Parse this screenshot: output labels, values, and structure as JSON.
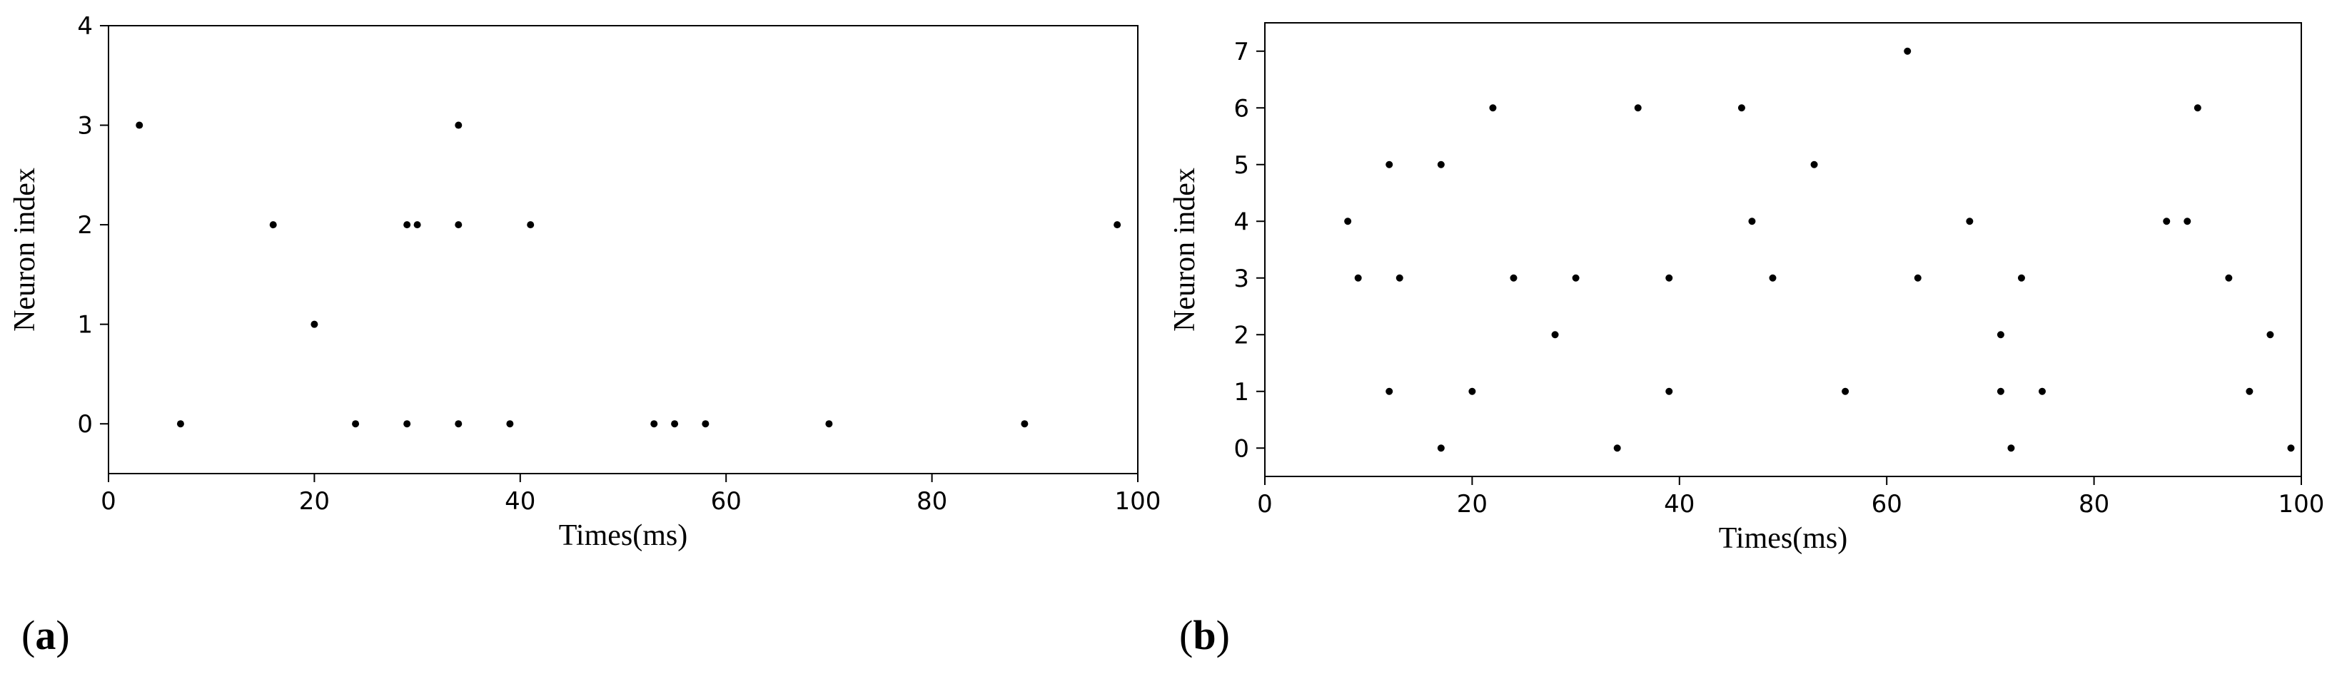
{
  "chart_data": [
    {
      "type": "scatter",
      "panel_label_open": "(",
      "panel_label_letter": "a",
      "panel_label_close": ")",
      "xlabel": "Times(ms)",
      "ylabel": "Neuron index",
      "xlim": [
        0,
        100
      ],
      "ylim": [
        -0.5,
        4
      ],
      "xticks": [
        0,
        20,
        40,
        60,
        80,
        100
      ],
      "yticks": [
        0,
        1,
        2,
        3,
        4
      ],
      "grid": false,
      "marker_color": "#000000",
      "series": [
        {
          "points": [
            [
              3,
              3
            ],
            [
              7,
              0
            ],
            [
              16,
              2
            ],
            [
              20,
              1
            ],
            [
              24,
              0
            ],
            [
              29,
              2
            ],
            [
              29,
              0
            ],
            [
              30,
              2
            ],
            [
              34,
              3
            ],
            [
              34,
              2
            ],
            [
              34,
              0
            ],
            [
              39,
              0
            ],
            [
              41,
              2
            ],
            [
              53,
              0
            ],
            [
              55,
              0
            ],
            [
              58,
              0
            ],
            [
              70,
              0
            ],
            [
              89,
              0
            ],
            [
              98,
              2
            ]
          ]
        }
      ]
    },
    {
      "type": "scatter",
      "panel_label_open": "(",
      "panel_label_letter": "b",
      "panel_label_close": ")",
      "xlabel": "Times(ms)",
      "ylabel": "Neuron index",
      "xlim": [
        0,
        100
      ],
      "ylim": [
        -0.5,
        7.5
      ],
      "xticks": [
        0,
        20,
        40,
        60,
        80,
        100
      ],
      "yticks": [
        0,
        1,
        2,
        3,
        4,
        5,
        6,
        7
      ],
      "grid": false,
      "marker_color": "#000000",
      "series": [
        {
          "points": [
            [
              8,
              4
            ],
            [
              9,
              3
            ],
            [
              12,
              5
            ],
            [
              12,
              1
            ],
            [
              13,
              3
            ],
            [
              17,
              5
            ],
            [
              17,
              0
            ],
            [
              20,
              1
            ],
            [
              22,
              6
            ],
            [
              24,
              3
            ],
            [
              28,
              2
            ],
            [
              30,
              3
            ],
            [
              34,
              0
            ],
            [
              36,
              6
            ],
            [
              39,
              3
            ],
            [
              39,
              1
            ],
            [
              46,
              6
            ],
            [
              47,
              4
            ],
            [
              49,
              3
            ],
            [
              53,
              5
            ],
            [
              56,
              1
            ],
            [
              62,
              7
            ],
            [
              63,
              3
            ],
            [
              68,
              4
            ],
            [
              71,
              2
            ],
            [
              71,
              1
            ],
            [
              72,
              0
            ],
            [
              73,
              3
            ],
            [
              75,
              1
            ],
            [
              87,
              4
            ],
            [
              89,
              4
            ],
            [
              90,
              6
            ],
            [
              93,
              3
            ],
            [
              95,
              1
            ],
            [
              97,
              2
            ],
            [
              99,
              0
            ]
          ]
        }
      ]
    }
  ]
}
